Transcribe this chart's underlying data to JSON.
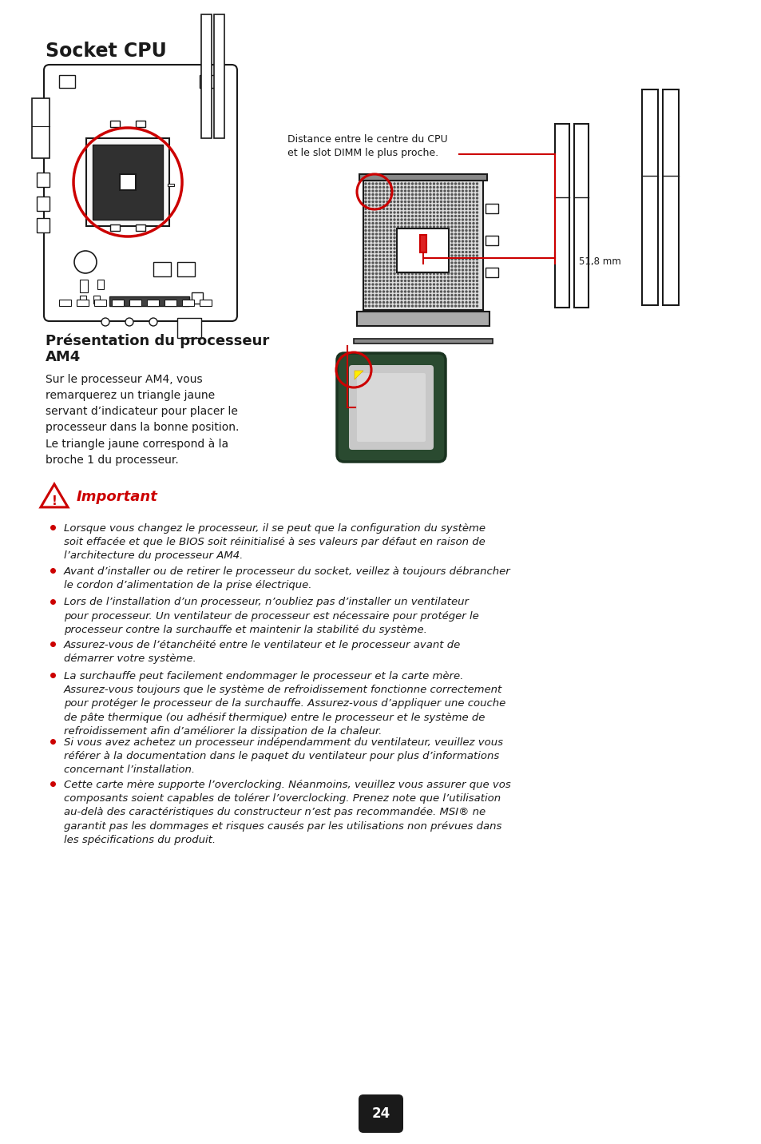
{
  "title": "Socket CPU",
  "bg_color": "#ffffff",
  "section2_title_line1": "Présentation du processeur",
  "section2_title_line2": "AM4",
  "section2_body": "Sur le processeur AM4, vous\nremarquerez un triangle jaune\nservant d’indicateur pour placer le\nprocesseur dans la bonne position.\nLe triangle jaune correspond à la\nbroche 1 du processeur.",
  "important_label": "Important",
  "bullet_points": [
    "Lorsque vous changez le processeur, il se peut que la configuration du système\nsoit effacée et que le BIOS soit réinitialisé à ses valeurs par défaut en raison de\nl’architecture du processeur AM4.",
    "Avant d’installer ou de retirer le processeur du socket, veillez à toujours débrancher\nle cordon d’alimentation de la prise électrique.",
    "Lors de l’installation d’un processeur, n’oubliez pas d’installer un ventilateur\npour processeur. Un ventilateur de processeur est nécessaire pour protéger le\nprocesseur contre la surchauffe et maintenir la stabilité du système.",
    "Assurez-vous de l’étanchéité entre le ventilateur et le processeur avant de\ndémarrer votre système.",
    "La surchauffe peut facilement endommager le processeur et la carte mère.\nAssurez-vous toujours que le système de refroidissement fonctionne correctement\npour protéger le processeur de la surchauffe. Assurez-vous d’appliquer une couche\nde pâte thermique (ou adhésif thermique) entre le processeur et le système de\nrefroidissement afin d’améliorer la dissipation de la chaleur.",
    "Si vous avez achetez un processeur indépendamment du ventilateur, veuillez vous\nréférer à la documentation dans le paquet du ventilateur pour plus d’informations\nconcernant l’installation.",
    "Cette carte mère supporte l’overclocking. Néanmoins, veuillez vous assurer que vos\ncomposants soient capables de tolérer l’overclocking. Prenez note que l’utilisation\nau-delà des caractéristiques du constructeur n’est pas recommandée. MSI® ne\ngarantit pas les dommages et risques causés par les utilisations non prévues dans\nles spécifications du produit."
  ],
  "page_number": "24",
  "dimm_label_line1": "Distance entre le centre du CPU",
  "dimm_label_line2": "et le slot DIMM le plus proche.",
  "dim_label": "51,8 mm",
  "red_color": "#cc0000",
  "text_color": "#1a1a1a"
}
